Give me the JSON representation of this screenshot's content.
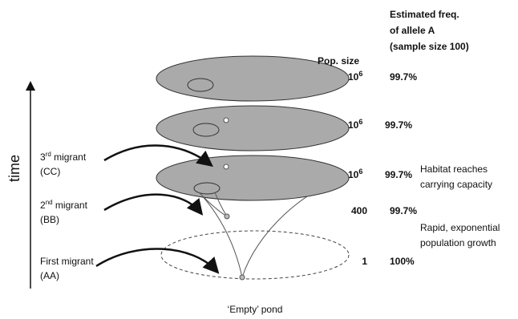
{
  "header": {
    "pop_size": "Pop. size",
    "freq_lines": [
      "Estimated freq.",
      "of allele A",
      "(sample size 100)"
    ]
  },
  "axis_label": "time",
  "levels": [
    {
      "pop": {
        "base": "10",
        "exp": "6"
      },
      "freq": "99.7%"
    },
    {
      "pop": {
        "base": "10",
        "exp": "6"
      },
      "freq": "99.7%"
    },
    {
      "pop": {
        "base": "10",
        "exp": "6"
      },
      "freq": "99.7%",
      "note": [
        "Habitat reaches",
        "carrying capacity"
      ]
    },
    {
      "pop": "400",
      "freq": "99.7%",
      "note": [
        "Rapid, exponential",
        "population growth"
      ]
    },
    {
      "pop": "1",
      "freq": "100%"
    }
  ],
  "migrants": [
    {
      "ordinal": "3",
      "suffix": "rd",
      "rest": " migrant",
      "genotype": "(CC)"
    },
    {
      "ordinal": "2",
      "suffix": "nd",
      "rest": " migrant",
      "genotype": "(BB)"
    },
    {
      "label": "First migrant",
      "genotype": "(AA)"
    }
  ],
  "footer": "‘Empty’ pond"
}
